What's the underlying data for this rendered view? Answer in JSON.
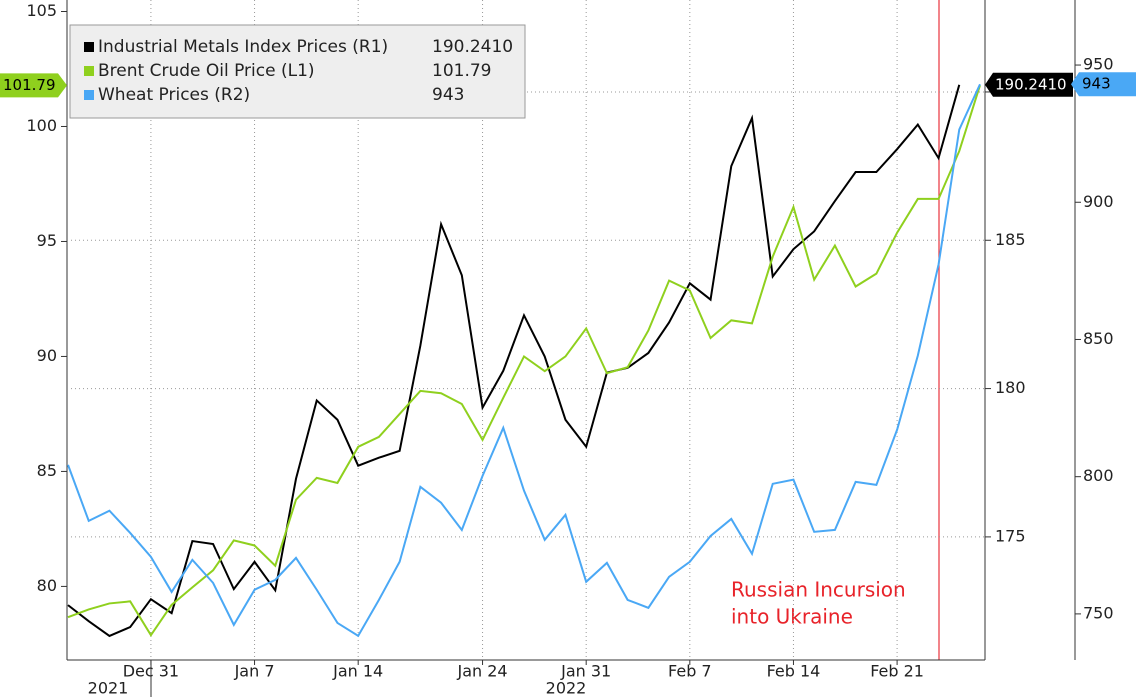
{
  "chart_data": {
    "type": "line",
    "categories": [
      null,
      null,
      null,
      null,
      "Dec 31",
      null,
      null,
      null,
      null,
      "Jan 7",
      null,
      null,
      null,
      null,
      "Jan 14",
      null,
      null,
      null,
      null,
      null,
      "Jan 24",
      null,
      null,
      null,
      null,
      "Jan 31",
      null,
      null,
      null,
      null,
      "Feb 7",
      null,
      null,
      null,
      null,
      "Feb 14",
      null,
      null,
      null,
      null,
      "Feb 21",
      null,
      null,
      null,
      null
    ],
    "years": [
      "2021",
      "2022"
    ],
    "ylim": [
      76.8,
      105.5
    ],
    "yticks": [
      80,
      85,
      90,
      95,
      100,
      105
    ],
    "y2lim": [
      170.85,
      193.1
    ],
    "y2ticks": [
      175,
      180,
      185,
      190
    ],
    "y3lim": [
      733.2,
      973.7
    ],
    "y3ticks": [
      750,
      800,
      850,
      900,
      950
    ],
    "grid": true,
    "legend": "upper left",
    "annotation": [
      "Russian Incursion",
      "into Ukraine"
    ],
    "series": [
      {
        "name": "Industrial Metals Index Prices (R1)",
        "color": "#000000",
        "axis": "y2",
        "last_label": "190.2410",
        "values": [
          172.7,
          172.16,
          171.66,
          171.96,
          172.9,
          172.43,
          174.86,
          174.76,
          173.24,
          174.16,
          173.2,
          176.96,
          179.6,
          178.95,
          177.4,
          177.67,
          177.9,
          181.45,
          185.54,
          183.82,
          179.36,
          180.6,
          182.47,
          181.08,
          178.95,
          178.04,
          180.54,
          180.7,
          181.2,
          182.23,
          183.55,
          183.0,
          187.5,
          189.12,
          183.78,
          184.7,
          185.3,
          186.32,
          187.3,
          187.3,
          188.07,
          188.9,
          187.77,
          190.241,
          null
        ]
      },
      {
        "name": "Brent Crude Oil Price (L1)",
        "color": "#8fd01e",
        "axis": "y",
        "last_label": "101.79",
        "values": [
          78.66,
          79.0,
          79.26,
          79.35,
          77.88,
          79.2,
          79.96,
          80.7,
          82.0,
          81.78,
          80.9,
          83.77,
          84.72,
          84.5,
          86.07,
          86.5,
          87.5,
          88.5,
          88.4,
          87.93,
          86.37,
          88.2,
          90.0,
          89.36,
          90.0,
          91.22,
          89.27,
          89.53,
          91.13,
          93.3,
          92.87,
          90.8,
          91.57,
          91.44,
          94.34,
          96.5,
          93.34,
          94.82,
          93.04,
          93.6,
          95.38,
          96.85,
          96.85,
          98.93,
          101.79
        ]
      },
      {
        "name": "Wheat Prices (R2)",
        "color": "#4aa8f5",
        "axis": "y3",
        "last_label": "943",
        "values": [
          804.3,
          783.9,
          787.6,
          779.5,
          770.8,
          758,
          769.7,
          761.3,
          746,
          758.8,
          762.4,
          770.4,
          758.8,
          746.7,
          742,
          755.1,
          769,
          796.3,
          790.5,
          780.6,
          800.3,
          817.8,
          794.9,
          777,
          786.1,
          761.7,
          768.6,
          755.1,
          752.2,
          763.5,
          769,
          778.4,
          784.6,
          771.9,
          797.4,
          798.9,
          779.9,
          780.6,
          798.1,
          797,
          817.1,
          844.1,
          877.3,
          926.5,
          943
        ]
      }
    ]
  }
}
